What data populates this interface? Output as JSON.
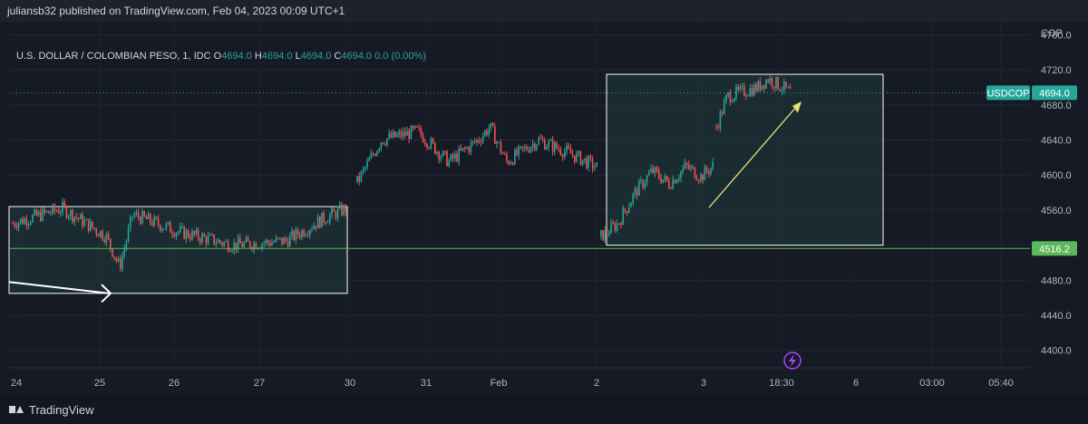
{
  "header": {
    "publish_text": "juliansb32 published on TradingView.com, Feb 04, 2023 00:09 UTC+1"
  },
  "footer": {
    "brand": "TradingView"
  },
  "colors": {
    "up": "#26a69a",
    "down": "#ef5350",
    "support": "#5cb85c",
    "box_fill": "#1f3a3d",
    "box_stroke": "#ffffff",
    "arrow": "#e6e07a"
  },
  "chart_data": {
    "type": "candlestick",
    "symbol_line": "U.S. DOLLAR / COLOMBIAN PESO, 1, IDC",
    "ohlc": {
      "o_label": "O",
      "o": "4694.0",
      "h_label": "H",
      "h": "4694.0",
      "l_label": "L",
      "l": "4694.0",
      "c_label": "C",
      "c": "4694.0",
      "change": "0.0 (0.00%)"
    },
    "currency": "COP",
    "y_ticks": [
      "4760.0",
      "4720.0",
      "4680.0",
      "4640.0",
      "4600.0",
      "4560.0",
      "4520.0",
      "4480.0",
      "4440.0",
      "4400.0"
    ],
    "ylim": [
      4380,
      4775
    ],
    "x_ticks": [
      "24",
      "25",
      "26",
      "27",
      "30",
      "31",
      "Feb",
      "2",
      "3",
      "18:30",
      "6",
      "03:00",
      "05:40"
    ],
    "last_price_tag": "USDCOP",
    "last_price": "4694.0",
    "last_price_value": 4694.0,
    "support_label": "4516.2",
    "support_value": 4516.2,
    "segments": [
      {
        "x0": 0.0,
        "x1": 0.32,
        "start": 4545,
        "path": [
          [
            0,
            4545
          ],
          [
            0.06,
            4562
          ],
          [
            0.1,
            4545
          ],
          [
            0.12,
            4500
          ],
          [
            0.14,
            4555
          ],
          [
            0.18,
            4538
          ],
          [
            0.22,
            4530
          ],
          [
            0.27,
            4520
          ],
          [
            0.3,
            4545
          ],
          [
            0.32,
            4565
          ]
        ]
      },
      {
        "x0": 0.33,
        "x1": 0.55,
        "start": 4590,
        "path": [
          [
            0.33,
            4590
          ],
          [
            0.36,
            4640
          ],
          [
            0.4,
            4650
          ],
          [
            0.44,
            4615
          ],
          [
            0.47,
            4645
          ],
          [
            0.49,
            4650
          ],
          [
            0.52,
            4610
          ],
          [
            0.55,
            4605
          ]
        ]
      },
      {
        "x0": 0.555,
        "x1": 0.655,
        "start": 4530,
        "path": [
          [
            0.555,
            4530
          ],
          [
            0.58,
            4560
          ],
          [
            0.6,
            4620
          ],
          [
            0.62,
            4605
          ],
          [
            0.64,
            4620
          ],
          [
            0.655,
            4610
          ]
        ]
      },
      {
        "x0": 0.66,
        "x1": 0.74,
        "start": 4660,
        "path": [
          [
            0.66,
            4660
          ],
          [
            0.69,
            4690
          ],
          [
            0.71,
            4705
          ],
          [
            0.73,
            4700
          ],
          [
            0.74,
            4694
          ]
        ]
      }
    ]
  }
}
